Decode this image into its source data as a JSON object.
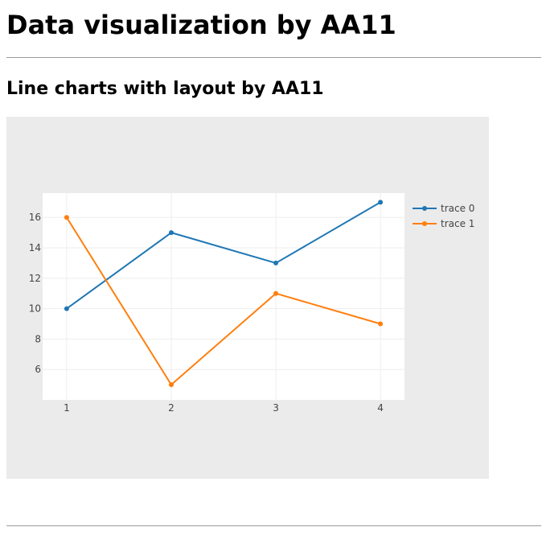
{
  "page": {
    "title": "Data visualization by AA11",
    "section_title": "Line charts with layout by AA11"
  },
  "colors": {
    "paper_background": "#ebebeb",
    "plot_background": "#ffffff",
    "grid": "#eeeeee",
    "rule": "#9a9a9a"
  },
  "chart_data": {
    "type": "line",
    "title": "",
    "xlabel": "",
    "ylabel": "",
    "xlim": [
      0.77,
      4.23
    ],
    "ylim": [
      4.0,
      17.6
    ],
    "x_ticks": [
      1,
      2,
      3,
      4
    ],
    "y_ticks": [
      6,
      8,
      10,
      12,
      14,
      16
    ],
    "grid": true,
    "legend_position": "right",
    "markers": true,
    "series": [
      {
        "name": "trace 0",
        "color": "#1f77b4",
        "x": [
          1,
          2,
          3,
          4
        ],
        "y": [
          10,
          15,
          13,
          17
        ]
      },
      {
        "name": "trace 1",
        "color": "#ff7f0e",
        "x": [
          1,
          2,
          3,
          4
        ],
        "y": [
          16,
          5,
          11,
          9
        ]
      }
    ]
  }
}
